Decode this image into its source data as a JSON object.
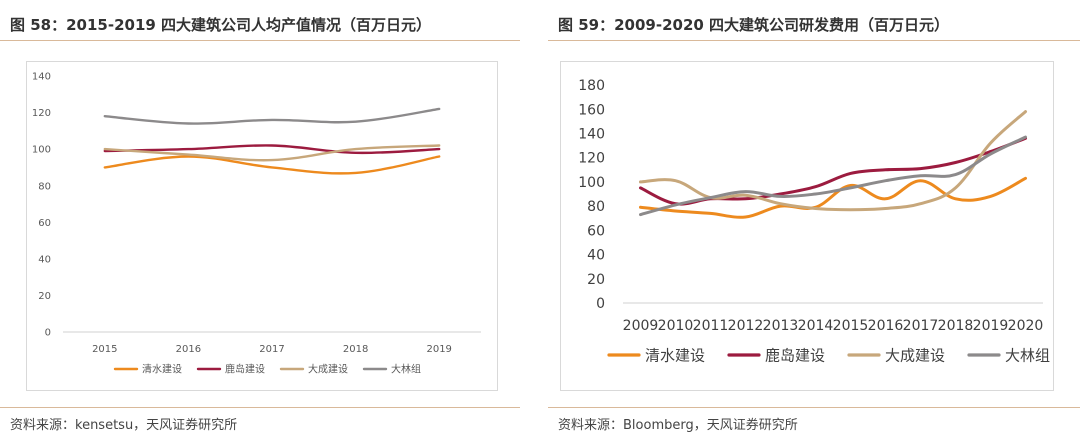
{
  "left": {
    "title": "图 58：2015-2019 四大建筑公司人均产值情况（百万日元）",
    "source": "资料来源：kensetsu，天风证券研究所"
  },
  "right": {
    "title": "图 59：2009-2020 四大建筑公司研发费用（百万日元）",
    "source": "资料来源：Bloomberg，天风证券研究所"
  },
  "colors": {
    "清水建设": "#ed8a1e",
    "鹿岛建设": "#9c1b3f",
    "大成建设": "#c7a77b",
    "大林组": "#8c8a8b"
  },
  "chart_data": [
    {
      "type": "line",
      "title": "",
      "xlabel": "",
      "ylabel": "",
      "x": [
        "2015",
        "2016",
        "2017",
        "2018",
        "2019"
      ],
      "ylim": [
        0,
        140
      ],
      "yticks": [
        0,
        20,
        40,
        60,
        80,
        100,
        120,
        140
      ],
      "grid": false,
      "legend": "bottom",
      "series": [
        {
          "name": "清水建设",
          "values": [
            90,
            96,
            90,
            87,
            96
          ]
        },
        {
          "name": "鹿岛建设",
          "values": [
            99,
            100,
            102,
            98,
            100
          ]
        },
        {
          "name": "大成建设",
          "values": [
            100,
            97,
            94,
            100,
            102
          ]
        },
        {
          "name": "大林组",
          "values": [
            118,
            114,
            116,
            115,
            122
          ]
        }
      ]
    },
    {
      "type": "line",
      "title": "",
      "xlabel": "",
      "ylabel": "",
      "x": [
        "2009",
        "2010",
        "2011",
        "2012",
        "2013",
        "2014",
        "2015",
        "2016",
        "2017",
        "2018",
        "2019",
        "2020"
      ],
      "ylim": [
        0,
        180
      ],
      "yticks": [
        0,
        20,
        40,
        60,
        80,
        100,
        120,
        140,
        160,
        180
      ],
      "grid": false,
      "legend": "bottom",
      "series": [
        {
          "name": "清水建设",
          "values": [
            79,
            76,
            74,
            71,
            80,
            79,
            97,
            86,
            101,
            86,
            88,
            103
          ]
        },
        {
          "name": "鹿岛建设",
          "values": [
            95,
            82,
            86,
            86,
            90,
            96,
            107,
            110,
            111,
            116,
            125,
            136
          ]
        },
        {
          "name": "大成建设",
          "values": [
            100,
            101,
            87,
            89,
            82,
            78,
            77,
            78,
            82,
            95,
            132,
            158
          ]
        },
        {
          "name": "大林组",
          "values": [
            73,
            81,
            87,
            92,
            88,
            90,
            95,
            101,
            105,
            106,
            123,
            137
          ]
        }
      ]
    }
  ]
}
